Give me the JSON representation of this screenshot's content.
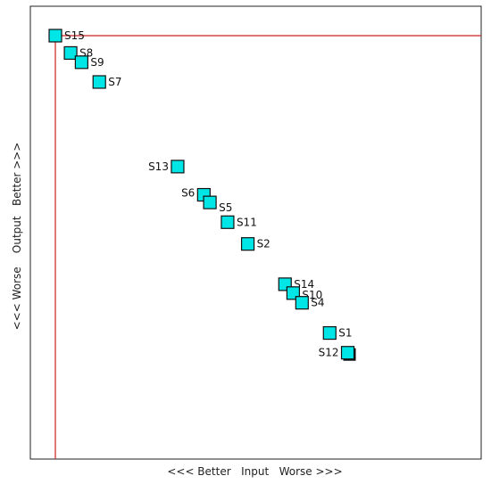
{
  "chart_data": {
    "type": "scatter",
    "xlabel": "<<< Better   Input   Worse >>>",
    "ylabel": "<<< Worse    Output   Better >>>",
    "xlim": [
      0,
      100
    ],
    "ylim": [
      0,
      100
    ],
    "grid": false,
    "reference_lines": {
      "x": 0,
      "y": 100,
      "color": "#cc2222"
    },
    "marker_color": "#00e5e5",
    "points": [
      {
        "label": "S15",
        "x": 0,
        "y": 100
      },
      {
        "label": "S8",
        "x": 4.3,
        "y": 95.7
      },
      {
        "label": "S9",
        "x": 7.4,
        "y": 93.4
      },
      {
        "label": "S7",
        "x": 12.4,
        "y": 88.5
      },
      {
        "label": "S13",
        "x": 34.5,
        "y": 67.5
      },
      {
        "label": "S6",
        "x": 41.9,
        "y": 60.5
      },
      {
        "label": "S5",
        "x": 43.6,
        "y": 58.6
      },
      {
        "label": "S11",
        "x": 48.6,
        "y": 53.7
      },
      {
        "label": "S2",
        "x": 54.3,
        "y": 48.3
      },
      {
        "label": "S14",
        "x": 64.8,
        "y": 38.3
      },
      {
        "label": "S10",
        "x": 67.1,
        "y": 36.1
      },
      {
        "label": "S4",
        "x": 69.6,
        "y": 33.7
      },
      {
        "label": "S1",
        "x": 77.4,
        "y": 26.2
      },
      {
        "label": "S12",
        "x": 82.5,
        "y": 21.3
      }
    ]
  }
}
